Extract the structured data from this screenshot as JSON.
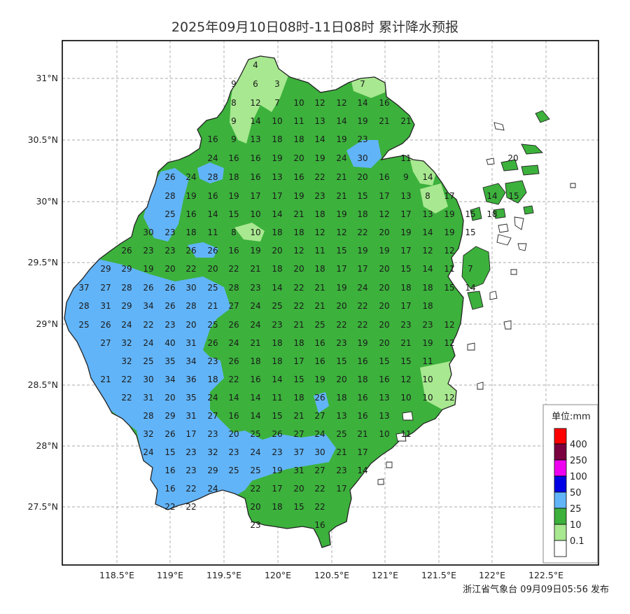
{
  "title": "2025年09月10日08时-11日08时 累计降水预报",
  "footer": "浙江省气象台 09月09日05:56 发布",
  "colors": {
    "lt10": "#a8e890",
    "lt25": "#3cb13c",
    "lt50": "#62b4f8",
    "lt100": "#0000e6",
    "lt250": "#f000f0",
    "lt400": "#7a0040",
    "ge400": "#ff0000"
  },
  "axes": {
    "lat_ticks": [
      "31°N",
      "30.5°N",
      "30°N",
      "29.5°N",
      "29°N",
      "28.5°N",
      "28°N",
      "27.5°N"
    ],
    "lon_ticks": [
      "118.5°E",
      "119°E",
      "119.5°E",
      "120°E",
      "120.5°E",
      "121°E",
      "121.5°E",
      "122°E",
      "122.5°E"
    ]
  },
  "legend": {
    "title": "单位:mm",
    "levels": [
      "400",
      "250",
      "100",
      "50",
      "25",
      "10",
      "0.1"
    ]
  },
  "values": [
    [
      "4"
    ],
    [
      "9",
      "6",
      "3",
      "7"
    ],
    [
      "8",
      "12",
      "7",
      "10",
      "12",
      "12",
      "14",
      "16"
    ],
    [
      "9",
      "14",
      "10",
      "11",
      "13",
      "14",
      "19",
      "21",
      "21"
    ],
    [
      "16",
      "9",
      "13",
      "18",
      "18",
      "14",
      "19",
      "23"
    ],
    [
      "24",
      "16",
      "16",
      "19",
      "20",
      "19",
      "24",
      "30",
      "11",
      "20"
    ],
    [
      "26",
      "24",
      "28",
      "18",
      "16",
      "13",
      "16",
      "22",
      "21",
      "20",
      "16",
      "9",
      "14"
    ],
    [
      "28",
      "19",
      "16",
      "19",
      "17",
      "17",
      "19",
      "23",
      "21",
      "15",
      "17",
      "13",
      "8",
      "17",
      "14",
      "15"
    ],
    [
      "25",
      "16",
      "14",
      "15",
      "10",
      "14",
      "21",
      "18",
      "19",
      "18",
      "12",
      "17",
      "13",
      "19",
      "15",
      "18"
    ],
    [
      "30",
      "23",
      "18",
      "11",
      "8",
      "10",
      "18",
      "18",
      "12",
      "12",
      "22",
      "20",
      "19",
      "14",
      "19",
      "15"
    ],
    [
      "26",
      "23",
      "23",
      "26",
      "26",
      "16",
      "19",
      "20",
      "12",
      "11",
      "15",
      "19",
      "19",
      "17",
      "12",
      "12"
    ],
    [
      "29",
      "29",
      "19",
      "20",
      "22",
      "20",
      "22",
      "21",
      "18",
      "20",
      "18",
      "17",
      "17",
      "20",
      "15",
      "14",
      "11",
      "7"
    ],
    [
      "37",
      "27",
      "28",
      "26",
      "26",
      "30",
      "25",
      "28",
      "23",
      "14",
      "22",
      "21",
      "19",
      "24",
      "20",
      "18",
      "18",
      "15",
      "14"
    ],
    [
      "28",
      "31",
      "29",
      "34",
      "26",
      "28",
      "21",
      "27",
      "24",
      "25",
      "22",
      "21",
      "20",
      "22",
      "20",
      "17",
      "18"
    ],
    [
      "25",
      "26",
      "24",
      "22",
      "23",
      "20",
      "25",
      "26",
      "24",
      "23",
      "21",
      "25",
      "22",
      "22",
      "20",
      "23",
      "23",
      "12"
    ],
    [
      "27",
      "32",
      "24",
      "40",
      "31",
      "26",
      "24",
      "21",
      "18",
      "18",
      "16",
      "23",
      "19",
      "20",
      "21",
      "19",
      "12"
    ],
    [
      "32",
      "25",
      "35",
      "34",
      "23",
      "26",
      "18",
      "18",
      "17",
      "16",
      "15",
      "16",
      "15",
      "15",
      "11"
    ],
    [
      "21",
      "22",
      "30",
      "34",
      "36",
      "18",
      "22",
      "16",
      "14",
      "15",
      "19",
      "20",
      "18",
      "16",
      "12",
      "10"
    ],
    [
      "22",
      "31",
      "20",
      "35",
      "24",
      "14",
      "14",
      "11",
      "18",
      "26",
      "18",
      "16",
      "13",
      "10",
      "10",
      "12"
    ],
    [
      "28",
      "29",
      "31",
      "27",
      "16",
      "14",
      "15",
      "21",
      "27",
      "13",
      "16",
      "13"
    ],
    [
      "32",
      "26",
      "17",
      "23",
      "20",
      "25",
      "26",
      "27",
      "24",
      "25",
      "21",
      "10",
      "11"
    ],
    [
      "24",
      "15",
      "23",
      "32",
      "23",
      "24",
      "23",
      "37",
      "30",
      "21",
      "17"
    ],
    [
      "16",
      "23",
      "29",
      "25",
      "25",
      "19",
      "31",
      "27",
      "23",
      "14"
    ],
    [
      "16",
      "22",
      "24",
      "22",
      "17",
      "20",
      "22",
      "17"
    ],
    [
      "22",
      "22",
      "20",
      "18",
      "15",
      "22"
    ],
    [
      "23",
      "16"
    ]
  ]
}
